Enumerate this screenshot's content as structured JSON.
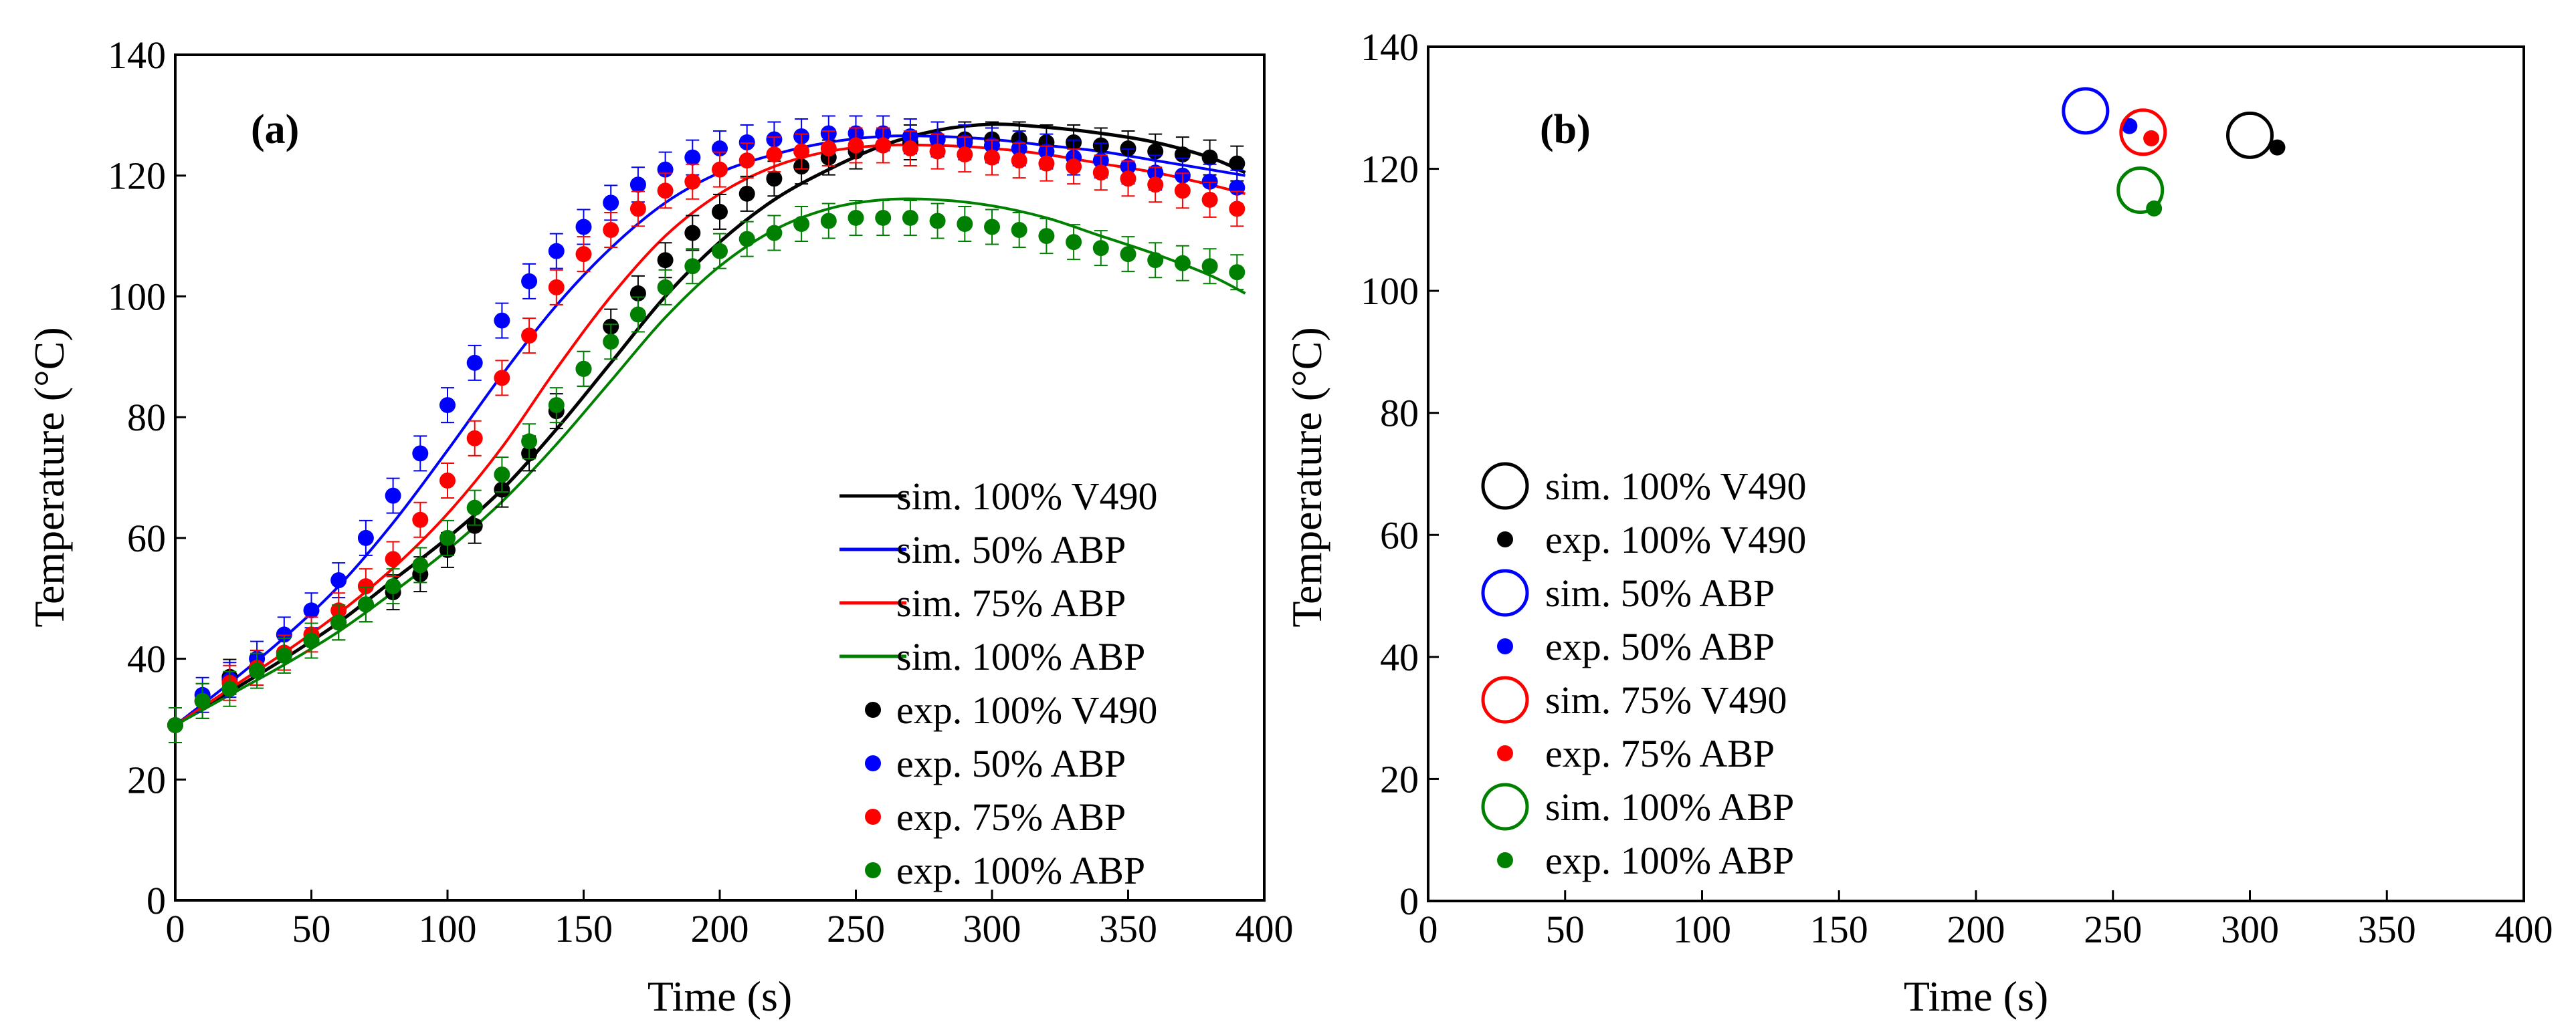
{
  "chart_data": [
    {
      "panel_label": "(a)",
      "type": "line",
      "xlabel": "Time (s)",
      "ylabel": "Temperature  (°C)",
      "xlim": [
        0,
        400
      ],
      "ylim": [
        0,
        140
      ],
      "xticks": [
        0,
        50,
        100,
        150,
        200,
        250,
        300,
        350,
        400
      ],
      "yticks": [
        0,
        20,
        40,
        60,
        80,
        100,
        120,
        140
      ],
      "grid": false,
      "legend_position": "bottom-right",
      "series": [
        {
          "name": "sim. 100% V490",
          "kind": "line",
          "color": "#000000",
          "x": [
            0,
            20,
            40,
            60,
            80,
            100,
            120,
            140,
            160,
            180,
            200,
            220,
            240,
            260,
            280,
            300,
            320,
            340,
            360,
            380,
            393
          ],
          "y": [
            29,
            34.5,
            40,
            46,
            53,
            60,
            68,
            78,
            89,
            100,
            109,
            116,
            121,
            125,
            127.5,
            128.5,
            128,
            127,
            125.5,
            123,
            120.5
          ]
        },
        {
          "name": "sim. 50% ABP",
          "kind": "line",
          "color": "#0000ff",
          "x": [
            0,
            20,
            40,
            60,
            80,
            100,
            120,
            140,
            160,
            180,
            200,
            220,
            240,
            260,
            280,
            300,
            320,
            340,
            360,
            380,
            393
          ],
          "y": [
            29,
            36,
            43.5,
            52,
            62.5,
            74.5,
            87,
            98.5,
            108,
            115.5,
            120.5,
            123.5,
            125.5,
            126.5,
            126.5,
            126,
            125,
            124,
            122.5,
            121,
            120
          ]
        },
        {
          "name": "sim. 75% ABP",
          "kind": "line",
          "color": "#ff0000",
          "x": [
            0,
            20,
            40,
            60,
            80,
            100,
            120,
            140,
            160,
            180,
            200,
            220,
            240,
            260,
            280,
            300,
            320,
            340,
            360,
            380,
            393
          ],
          "y": [
            29,
            35,
            41,
            47.5,
            55,
            64,
            75,
            88,
            100,
            110,
            117,
            121.5,
            124,
            125,
            125,
            124.5,
            123.5,
            122,
            120.5,
            118.5,
            117
          ]
        },
        {
          "name": "sim. 100% ABP",
          "kind": "line",
          "color": "#008000",
          "x": [
            0,
            20,
            40,
            60,
            80,
            100,
            120,
            140,
            160,
            180,
            200,
            220,
            240,
            260,
            280,
            300,
            320,
            340,
            360,
            380,
            393
          ],
          "y": [
            29,
            34,
            39,
            44.5,
            51,
            58,
            66,
            75.5,
            86,
            96.5,
            105,
            111,
            114.5,
            116,
            116,
            115,
            113,
            110,
            107,
            103.5,
            100.5
          ]
        },
        {
          "name": "exp. 100% V490",
          "kind": "scatter",
          "color": "#000000",
          "x": [
            0,
            10,
            20,
            30,
            40,
            50,
            60,
            70,
            80,
            90,
            100,
            110,
            120,
            130,
            140,
            150,
            160,
            170,
            180,
            190,
            200,
            210,
            220,
            230,
            240,
            250,
            260,
            270,
            280,
            290,
            300,
            310,
            320,
            330,
            340,
            350,
            360,
            370,
            380,
            390
          ],
          "y": [
            29,
            33,
            37,
            38.5,
            41,
            43,
            46,
            49,
            51,
            54,
            58,
            62,
            68,
            74,
            81,
            88,
            95,
            100.5,
            106,
            110.5,
            114,
            117,
            119.5,
            121.5,
            123,
            124,
            125,
            125.5,
            126,
            126,
            126,
            126,
            125.5,
            125.5,
            125,
            124.5,
            124,
            123.5,
            123,
            122
          ]
        },
        {
          "name": "exp. 50% ABP",
          "kind": "scatter",
          "color": "#0000ff",
          "x": [
            0,
            10,
            20,
            30,
            40,
            50,
            60,
            70,
            80,
            90,
            100,
            110,
            120,
            130,
            140,
            150,
            160,
            170,
            180,
            190,
            200,
            210,
            220,
            230,
            240,
            250,
            260,
            270,
            280,
            290,
            300,
            310,
            320,
            330,
            340,
            350,
            360,
            370,
            380,
            390
          ],
          "y": [
            29,
            34,
            36.5,
            40,
            44,
            48,
            53,
            60,
            67,
            74,
            82,
            89,
            96,
            102.5,
            107.5,
            111.5,
            115.5,
            118.5,
            121,
            123,
            124.5,
            125.5,
            126,
            126.5,
            127,
            127,
            127,
            126.5,
            126,
            125.5,
            125,
            124.5,
            124,
            123,
            122.5,
            121.5,
            120.5,
            120,
            119,
            118
          ]
        },
        {
          "name": "exp. 75% ABP",
          "kind": "scatter",
          "color": "#ff0000",
          "x": [
            0,
            10,
            20,
            30,
            40,
            50,
            60,
            70,
            80,
            90,
            100,
            110,
            120,
            130,
            140,
            150,
            160,
            170,
            180,
            190,
            200,
            210,
            220,
            230,
            240,
            250,
            260,
            270,
            280,
            290,
            300,
            310,
            320,
            330,
            340,
            350,
            360,
            370,
            380,
            390
          ],
          "y": [
            29,
            33,
            36,
            38.5,
            41,
            44,
            48,
            52,
            56.5,
            63,
            69.5,
            76.5,
            86.5,
            93.5,
            101.5,
            107,
            111,
            114.5,
            117.5,
            119,
            121,
            122.5,
            123.5,
            124,
            124.5,
            125,
            125,
            124.5,
            124,
            123.5,
            123,
            122.5,
            122,
            121.5,
            120.5,
            119.5,
            118.5,
            117.5,
            116,
            114.5
          ]
        },
        {
          "name": "exp. 100% ABP",
          "kind": "scatter",
          "color": "#008000",
          "x": [
            0,
            10,
            20,
            30,
            40,
            50,
            60,
            70,
            80,
            90,
            100,
            110,
            120,
            130,
            140,
            150,
            160,
            170,
            180,
            190,
            200,
            210,
            220,
            230,
            240,
            250,
            260,
            270,
            280,
            290,
            300,
            310,
            320,
            330,
            340,
            350,
            360,
            370,
            380,
            390
          ],
          "y": [
            29,
            33,
            35,
            38,
            40.5,
            43,
            46,
            49,
            52,
            55.5,
            60,
            65,
            70.5,
            76,
            82,
            88,
            92.5,
            97,
            101.5,
            105,
            107.5,
            109.5,
            110.5,
            112,
            112.5,
            113,
            113,
            113,
            112.5,
            112,
            111.5,
            111,
            110,
            109,
            108,
            107,
            106,
            105.5,
            105,
            104
          ]
        }
      ]
    },
    {
      "panel_label": "(b)",
      "type": "scatter",
      "xlabel": "Time (s)",
      "ylabel": "Temperature  (°C)",
      "xlim": [
        0,
        400
      ],
      "ylim": [
        0,
        140
      ],
      "xticks": [
        0,
        50,
        100,
        150,
        200,
        250,
        300,
        350,
        400
      ],
      "yticks": [
        0,
        20,
        40,
        60,
        80,
        100,
        120,
        140
      ],
      "grid": false,
      "legend_position": "bottom-left",
      "series": [
        {
          "name": "sim. 100% V490",
          "kind": "open-circle",
          "color": "#000000",
          "x": [
            300
          ],
          "y": [
            125.5
          ]
        },
        {
          "name": "exp. 100% V490",
          "kind": "dot",
          "color": "#000000",
          "x": [
            310
          ],
          "y": [
            123.5
          ]
        },
        {
          "name": "sim. 50% ABP",
          "kind": "open-circle",
          "color": "#0000ff",
          "x": [
            240
          ],
          "y": [
            129.5
          ]
        },
        {
          "name": "exp. 50% ABP",
          "kind": "dot",
          "color": "#0000ff",
          "x": [
            256
          ],
          "y": [
            127
          ]
        },
        {
          "name": "sim. 75% V490",
          "kind": "open-circle",
          "color": "#ff0000",
          "x": [
            261
          ],
          "y": [
            126
          ]
        },
        {
          "name": "exp. 75% ABP",
          "kind": "dot",
          "color": "#ff0000",
          "x": [
            264
          ],
          "y": [
            125
          ]
        },
        {
          "name": "sim. 100% ABP",
          "kind": "open-circle",
          "color": "#008000",
          "x": [
            260
          ],
          "y": [
            116.5
          ]
        },
        {
          "name": "exp. 100% ABP",
          "kind": "dot",
          "color": "#008000",
          "x": [
            265
          ],
          "y": [
            113.5
          ]
        }
      ]
    }
  ]
}
